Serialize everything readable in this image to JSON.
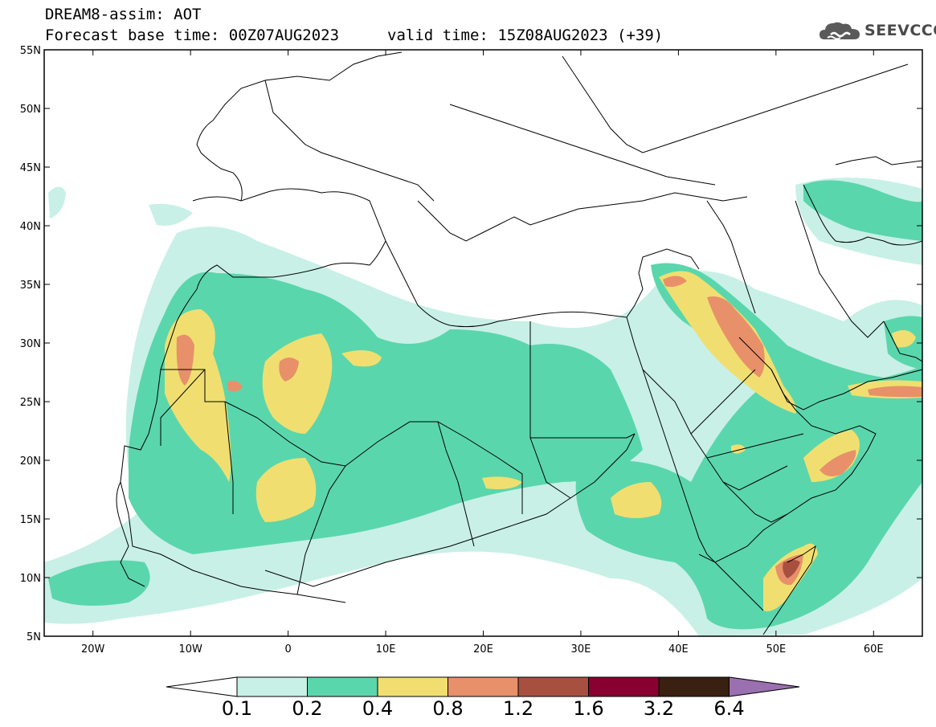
{
  "header": {
    "title": "DREAM8-assim: AOT",
    "base_time": "Forecast base time: 00Z07AUG2023",
    "valid_time": "valid time: 15Z08AUG2023 (+39)"
  },
  "logo": {
    "text": "SEEVCCC",
    "icon": "cloud-icon"
  },
  "map": {
    "lon_range": [
      -25,
      65
    ],
    "lat_range": [
      5,
      55
    ],
    "lat_labels": [
      "55N",
      "50N",
      "45N",
      "40N",
      "35N",
      "30N",
      "25N",
      "20N",
      "15N",
      "10N",
      "5N"
    ],
    "lon_labels": [
      "20W",
      "10W",
      "0",
      "10E",
      "20E",
      "30E",
      "40E",
      "50E",
      "60E"
    ]
  },
  "colorbar": {
    "colors": [
      "#c8f0e6",
      "#5ad6ac",
      "#f0df70",
      "#e8906a",
      "#a85040",
      "#880030",
      "#3a2010",
      "#9a70b0"
    ],
    "labels": [
      "0.1",
      "0.2",
      "0.4",
      "0.8",
      "1.2",
      "1.6",
      "3.2",
      "6.4"
    ]
  }
}
